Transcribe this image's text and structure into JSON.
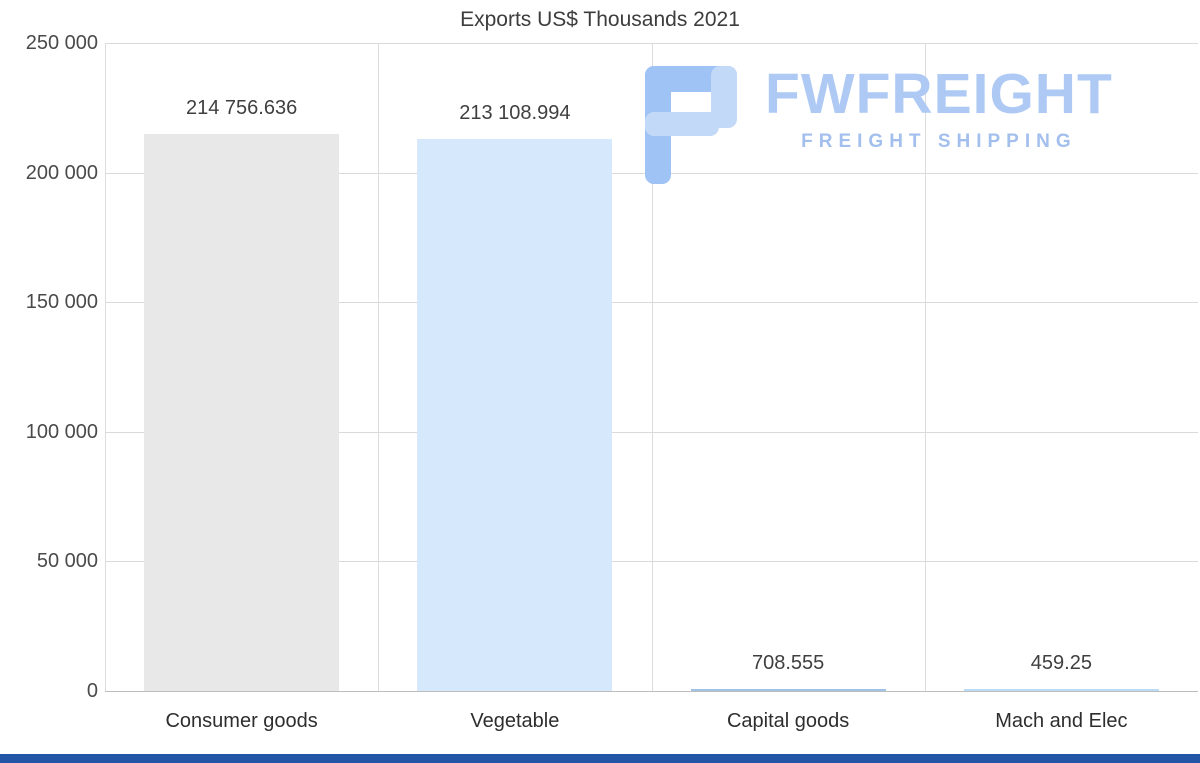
{
  "title": "Exports US$ Thousands 2021",
  "chart_data": {
    "type": "bar",
    "title": "Exports US$ Thousands 2021",
    "categories": [
      "Consumer goods",
      "Vegetable",
      "Capital goods",
      "Mach and Elec"
    ],
    "values": [
      214756.636,
      213108.994,
      708.555,
      459.25
    ],
    "value_labels": [
      "214 756.636",
      "213 108.994",
      "708.555",
      "459.25"
    ],
    "bar_colors": [
      "#e8e8e8",
      "#d6e8fb",
      "#9ec3e6",
      "#bcdcf5"
    ],
    "ylim": [
      0,
      250000
    ],
    "yticks": [
      0,
      50000,
      100000,
      150000,
      200000,
      250000
    ],
    "ytick_labels": [
      "0",
      "50 000",
      "100 000",
      "150 000",
      "200 000",
      "250 000"
    ],
    "xlabel": "",
    "ylabel": "",
    "grid": "horizontal gridlines with vertical category separators",
    "legend": "none"
  },
  "watermark": {
    "brand": "FWFREIGHT",
    "tagline": "FREIGHT SHIPPING",
    "icon": "fwfreight-f-logo-icon",
    "brand_color": "#aecaf4",
    "icon_color_main": "#9fc3f4",
    "icon_color_light": "#c2d9f8"
  },
  "footer": {
    "accent_color": "#2456a8"
  }
}
